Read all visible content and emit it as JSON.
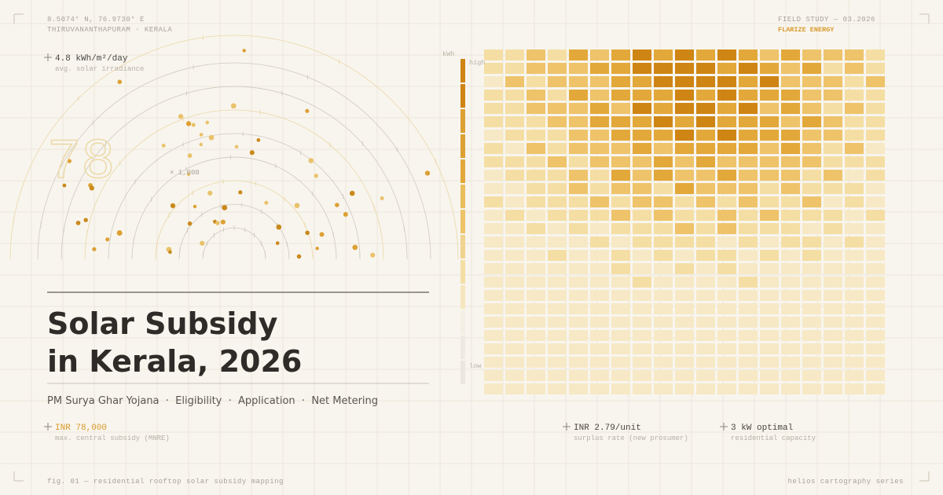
{
  "header": {
    "coordinates": "8.5074° N, 76.9730° E",
    "location": "THIRUVANANTHAPURAM · KERALA",
    "study": "FIELD STUDY — 03.2026",
    "brand": "FLARIZE ENERGY"
  },
  "irradiance": {
    "value": "4.8 kWh/m²/day",
    "label": "avg. solar irradiance"
  },
  "dial": {
    "number": "78",
    "multiplier": "× 1,000"
  },
  "legend": {
    "unit": "kWh",
    "high": "high",
    "low": "low"
  },
  "title": {
    "line1": "Solar Subsidy",
    "line2": "in Kerala, 2026"
  },
  "subtitle": "PM Surya Ghar Yojana  ·  Eligibility  ·  Application  ·  Net Metering",
  "stats": [
    {
      "value": "INR 78,000",
      "label": "max. central subsidy (MNRE)"
    },
    {
      "value": "INR 2.79/unit",
      "label": "surplus rate (new prosumer)"
    },
    {
      "value": "3 kW optimal",
      "label": "residential capacity"
    }
  ],
  "footer": {
    "left": "fig. 01 — residential rooftop solar subsidy mapping",
    "right": "helios cartography series"
  }
}
